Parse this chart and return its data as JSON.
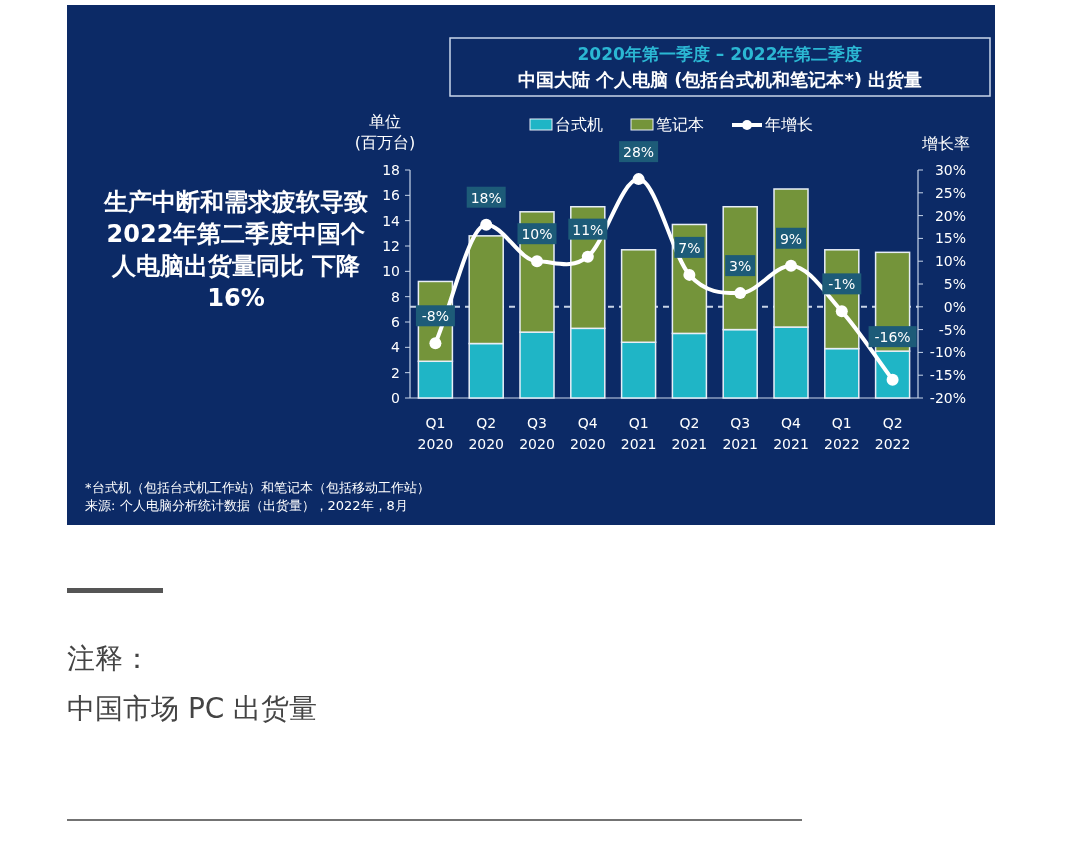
{
  "chart_data": {
    "type": "bar",
    "stacked": true,
    "title": "2020年第一季度 – 2022年第二季度",
    "subtitle": "中国大陆 个人电脑 (包括台式机和笔记本*) 出货量",
    "ylabel": "单位 (百万台)",
    "y2label": "增长率",
    "categories": [
      "Q1 2020",
      "Q2 2020",
      "Q3 2020",
      "Q4 2020",
      "Q1 2021",
      "Q2 2021",
      "Q3 2021",
      "Q4 2021",
      "Q1 2022",
      "Q2 2022"
    ],
    "series": [
      {
        "name": "台式机",
        "color": "#1fb5c6",
        "values": [
          2.9,
          4.3,
          5.2,
          5.5,
          4.4,
          5.1,
          5.4,
          5.6,
          3.9,
          3.7
        ]
      },
      {
        "name": "笔记本",
        "color": "#74943a",
        "values": [
          6.3,
          8.5,
          9.5,
          9.6,
          7.3,
          8.6,
          9.7,
          10.9,
          7.8,
          7.8
        ]
      },
      {
        "name": "年增长",
        "type": "line",
        "axis": "y2",
        "color": "#ffffff",
        "marker": "circle",
        "values": [
          -8,
          18,
          10,
          11,
          28,
          7,
          3,
          9,
          -1,
          -16
        ],
        "value_labels": [
          "-8%",
          "18%",
          "10%",
          "11%",
          "28%",
          "7%",
          "3%",
          "9%",
          "-1%",
          "-16%"
        ]
      }
    ],
    "ylim": [
      0,
      18
    ],
    "yticks": [
      0,
      2,
      4,
      6,
      8,
      10,
      12,
      14,
      16,
      18
    ],
    "y2lim": [
      -20,
      30
    ],
    "y2ticks": [
      {
        "value": -20,
        "label": "-20%"
      },
      {
        "value": -15,
        "label": "-15%"
      },
      {
        "value": -10,
        "label": "-10%"
      },
      {
        "value": -5,
        "label": "-5%"
      },
      {
        "value": 0,
        "label": "0%"
      },
      {
        "value": 5,
        "label": "5%"
      },
      {
        "value": 10,
        "label": "10%"
      },
      {
        "value": 15,
        "label": "15%"
      },
      {
        "value": 20,
        "label": "20%"
      },
      {
        "value": 25,
        "label": "25%"
      },
      {
        "value": 30,
        "label": "30%"
      }
    ],
    "ref_lines": [
      {
        "axis": "y2",
        "value": 0,
        "color": "#c8d4e8",
        "line_style": "dashed"
      }
    ],
    "legend": "top",
    "grid": false,
    "annotations": [
      "生产中断和需求疲软导致2022年第二季度中国个人电脑出货量同比 下降16%",
      "*台式机（包括台式机工作站）和笔记本（包括移动工作站）",
      "来源: 个人电脑分析统计数据（出货量），2022年，8月",
      "注释：",
      "中国市场 PC 出货量"
    ]
  }
}
